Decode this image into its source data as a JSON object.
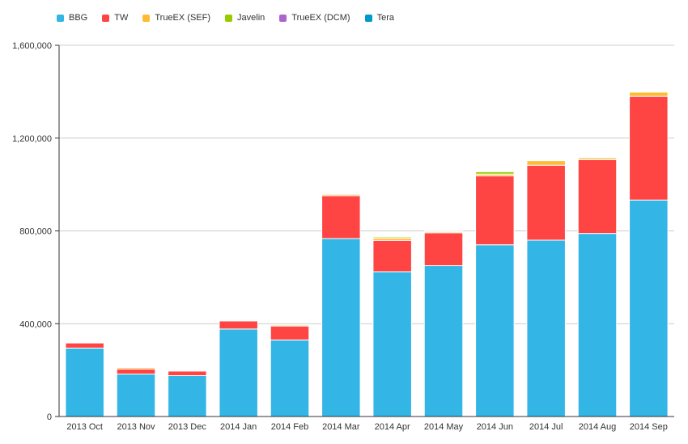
{
  "chart_data": {
    "type": "bar",
    "stacked": true,
    "title": "",
    "xlabel": "",
    "ylabel": "",
    "ylim": [
      0,
      1600000
    ],
    "yticks": [
      0,
      400000,
      800000,
      1200000,
      1600000
    ],
    "ytick_labels": [
      "0",
      "400,000",
      "800,000",
      "1,200,000",
      "1,600,000"
    ],
    "grid": true,
    "legend_position": "top-left",
    "categories": [
      "2013 Oct",
      "2013 Nov",
      "2013 Dec",
      "2014 Jan",
      "2014 Feb",
      "2014 Mar",
      "2014 Apr",
      "2014 May",
      "2014 Jun",
      "2014 Jul",
      "2014 Aug",
      "2014 Sep"
    ],
    "series": [
      {
        "name": "BBG",
        "color": "#33b5e5",
        "values": [
          295000,
          183000,
          176000,
          377000,
          330000,
          767000,
          624000,
          650000,
          740000,
          760000,
          789000,
          933000
        ]
      },
      {
        "name": "TW",
        "color": "#ff4444",
        "values": [
          22000,
          22000,
          20000,
          35000,
          60000,
          185000,
          135000,
          142000,
          297000,
          323000,
          318000,
          447000
        ]
      },
      {
        "name": "TrueEX (SEF)",
        "color": "#ffbb33",
        "values": [
          3000,
          6000,
          3000,
          2000,
          5000,
          6000,
          10000,
          5000,
          8000,
          20000,
          8000,
          18000
        ]
      },
      {
        "name": "Javelin",
        "color": "#99cc00",
        "values": [
          0,
          1000,
          0,
          0,
          1000,
          1000,
          5000,
          2000,
          10000,
          2000,
          2000,
          0
        ]
      },
      {
        "name": "TrueEX (DCM)",
        "color": "#aa66cc",
        "values": [
          0,
          0,
          0,
          0,
          0,
          0,
          0,
          0,
          0,
          0,
          0,
          0
        ]
      },
      {
        "name": "Tera",
        "color": "#0099cc",
        "values": [
          0,
          0,
          0,
          0,
          0,
          0,
          0,
          0,
          0,
          0,
          0,
          0
        ]
      }
    ]
  }
}
